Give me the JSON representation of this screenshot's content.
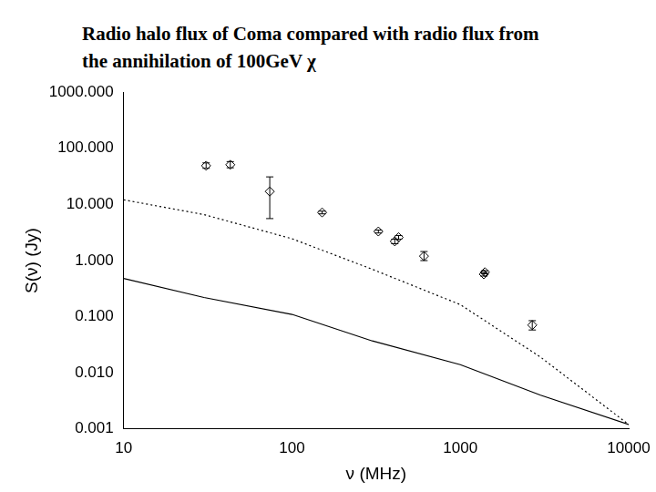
{
  "chart_data": {
    "type": "scatter",
    "title": [
      "Radio halo flux of Coma compared with  radio flux from",
      "the annihilation of 100GeV χ"
    ],
    "x_label": "ν (MHz)",
    "y_label": "S(ν) (Jy)",
    "log": true,
    "grid": false,
    "xlim": [
      10,
      10000
    ],
    "ylim": [
      0.001,
      1000
    ],
    "xticks": [
      10,
      100,
      1000,
      10000
    ],
    "yticks": [
      {
        "value": 0.001,
        "label": "0.001"
      },
      {
        "value": 0.01,
        "label": "0.010"
      },
      {
        "value": 0.1,
        "label": "0.100"
      },
      {
        "value": 1,
        "label": "1.000"
      },
      {
        "value": 10,
        "label": "10.000"
      },
      {
        "value": 100,
        "label": "100.000"
      },
      {
        "value": 1000,
        "label": "1000.000"
      }
    ],
    "series": [
      {
        "type": "scatter",
        "marker": "diamond",
        "color": "#000000",
        "x": [
          30.9,
          43,
          73.8,
          151,
          326,
          408,
          430,
          608.5,
          1380,
          1400,
          2675
        ],
        "values": [
          49,
          51,
          17,
          7.2,
          3.3,
          2.2,
          2.6,
          1.2,
          0.57,
          0.62,
          0.071
        ],
        "y_lower": [
          44,
          45,
          5.6,
          6.8,
          3.1,
          2.0,
          2.4,
          1.0,
          0.53,
          0.58,
          0.058
        ],
        "y_upper": [
          55,
          58,
          31,
          7.6,
          3.5,
          2.4,
          2.8,
          1.45,
          0.61,
          0.66,
          0.085
        ]
      },
      {
        "type": "line",
        "line_style": "dotted",
        "color": "#000000",
        "x": [
          10,
          30,
          100,
          300,
          1000,
          3000,
          10000
        ],
        "values": [
          12.1,
          6.6,
          2.45,
          0.7,
          0.164,
          0.019,
          0.0012
        ]
      },
      {
        "type": "line",
        "line_style": "solid",
        "color": "#000000",
        "x": [
          10,
          30,
          100,
          300,
          1000,
          3000,
          10000
        ],
        "values": [
          0.48,
          0.22,
          0.11,
          0.037,
          0.014,
          0.004,
          0.0012
        ]
      }
    ]
  }
}
